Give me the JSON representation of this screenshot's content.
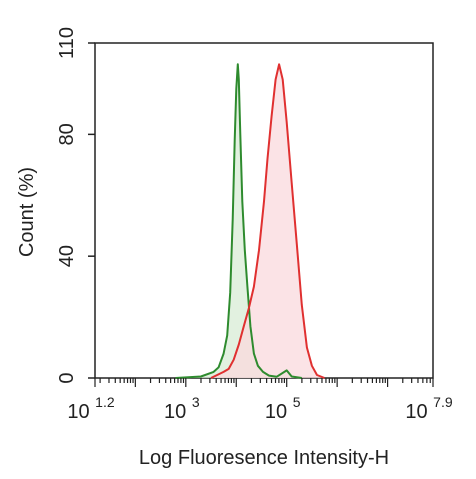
{
  "chart_data": {
    "type": "area",
    "xlabel": "Log Fluoresence Intensity-H",
    "ylabel": "Count  (%)",
    "xscale": "log",
    "xlim_log10": [
      1.2,
      7.9
    ],
    "ylim": [
      0,
      110
    ],
    "y_ticks": [
      "0",
      "40",
      "80",
      "110"
    ],
    "x_ticks": [
      {
        "base": "10",
        "exp": "1.2",
        "log10": 1.2
      },
      {
        "base": "10",
        "exp": "3",
        "log10": 3
      },
      {
        "base": "10",
        "exp": "5",
        "log10": 5
      },
      {
        "base": "10",
        "exp": "7.9",
        "log10": 7.9
      }
    ],
    "grid": false,
    "series": [
      {
        "color": "#2e8b2e",
        "fill": "#d8ecd6",
        "points_log10": [
          [
            2.8,
            0
          ],
          [
            3.3,
            0.5
          ],
          [
            3.55,
            2
          ],
          [
            3.65,
            3.5
          ],
          [
            3.75,
            8
          ],
          [
            3.82,
            14
          ],
          [
            3.88,
            28
          ],
          [
            3.93,
            52
          ],
          [
            3.97,
            78
          ],
          [
            4.0,
            95
          ],
          [
            4.03,
            103
          ],
          [
            4.05,
            98
          ],
          [
            4.08,
            80
          ],
          [
            4.12,
            58
          ],
          [
            4.17,
            42
          ],
          [
            4.22,
            30
          ],
          [
            4.28,
            17
          ],
          [
            4.35,
            8
          ],
          [
            4.43,
            4
          ],
          [
            4.53,
            2
          ],
          [
            4.65,
            0.8
          ],
          [
            4.8,
            0.4
          ],
          [
            5.0,
            2.5
          ],
          [
            5.1,
            0.5
          ],
          [
            5.3,
            0
          ]
        ]
      },
      {
        "color": "#e03030",
        "fill": "#fadadd",
        "points_log10": [
          [
            3.5,
            0
          ],
          [
            3.75,
            2
          ],
          [
            3.85,
            3
          ],
          [
            3.95,
            6
          ],
          [
            4.05,
            11
          ],
          [
            4.15,
            17
          ],
          [
            4.25,
            23
          ],
          [
            4.35,
            30
          ],
          [
            4.45,
            42
          ],
          [
            4.55,
            58
          ],
          [
            4.62,
            72
          ],
          [
            4.7,
            86
          ],
          [
            4.78,
            98
          ],
          [
            4.85,
            103
          ],
          [
            4.92,
            98
          ],
          [
            5.0,
            84
          ],
          [
            5.1,
            64
          ],
          [
            5.2,
            44
          ],
          [
            5.3,
            24
          ],
          [
            5.4,
            10
          ],
          [
            5.5,
            4
          ],
          [
            5.6,
            1
          ],
          [
            5.75,
            0
          ]
        ]
      }
    ]
  }
}
